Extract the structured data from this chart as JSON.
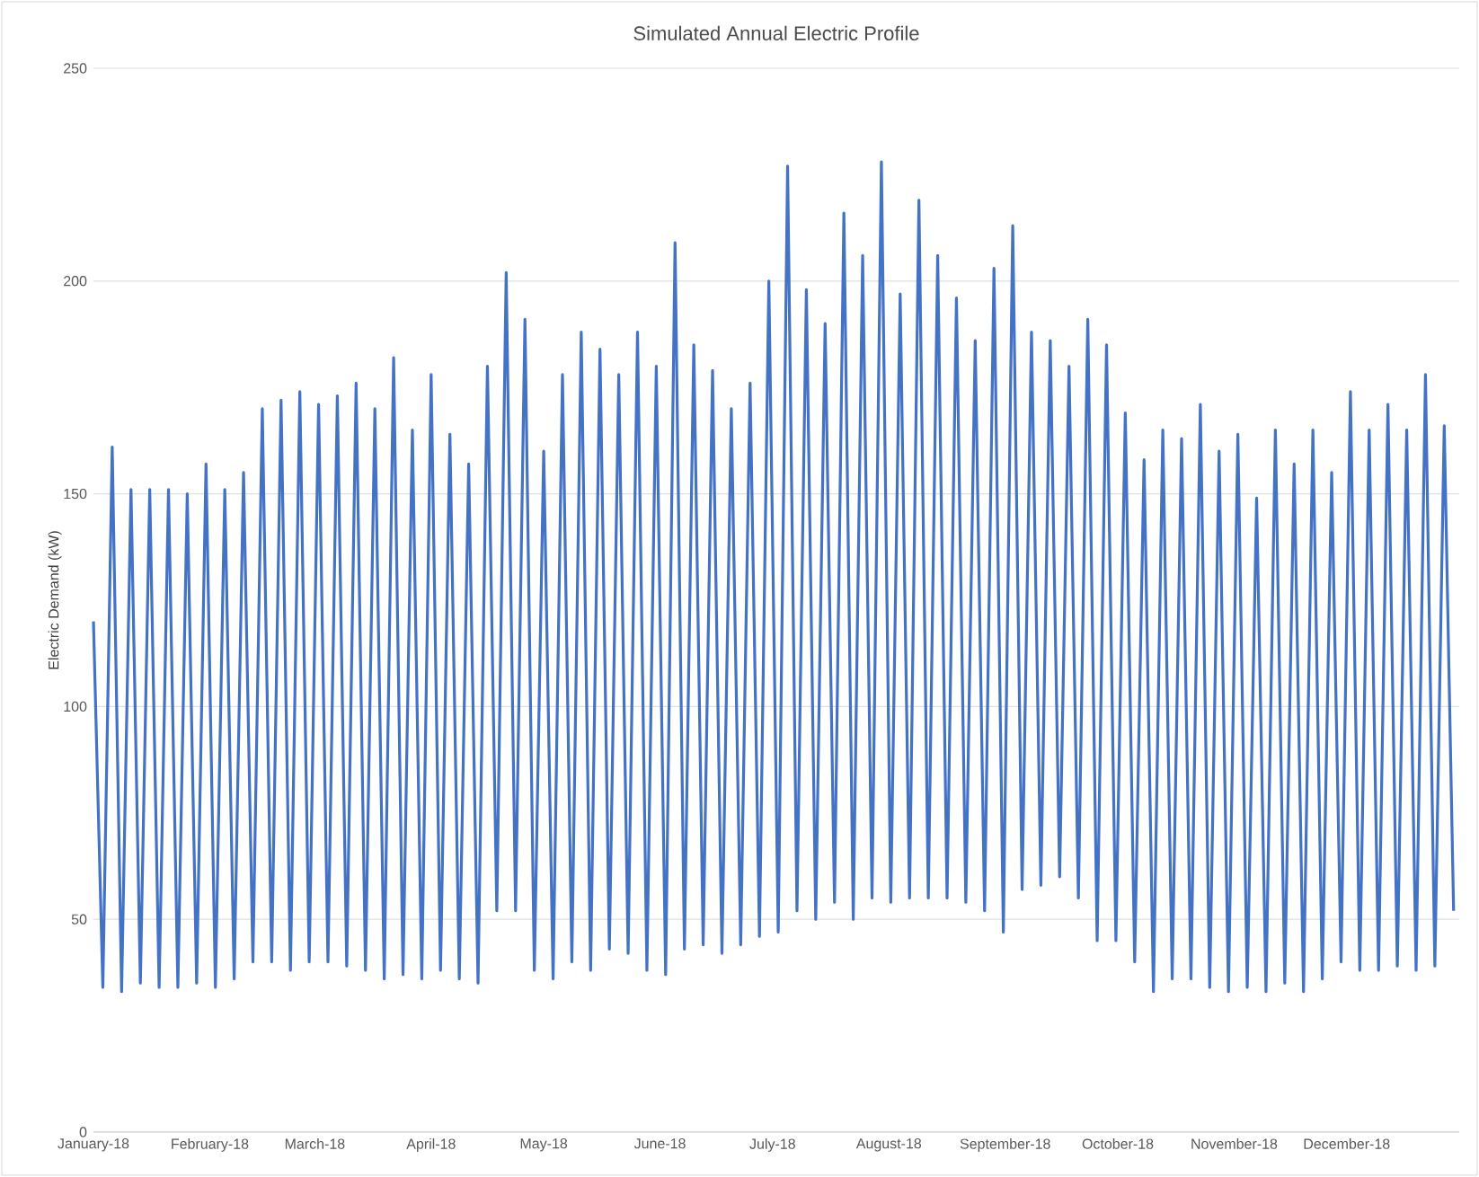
{
  "chart_data": {
    "type": "line",
    "title": "Simulated Annual Electric Profile",
    "ylabel": "Electric Demand (kW)",
    "x": [
      "2018-01-01",
      "2018-01-03T12:00",
      "2018-01-06",
      "2018-01-08T12:00",
      "2018-01-11",
      "2018-01-13T12:00",
      "2018-01-16",
      "2018-01-18T12:00",
      "2018-01-21",
      "2018-01-23T12:00",
      "2018-01-26",
      "2018-01-28T12:00",
      "2018-01-31",
      "2018-02-02T12:00",
      "2018-02-05",
      "2018-02-07T12:00",
      "2018-02-10",
      "2018-02-12T12:00",
      "2018-02-15",
      "2018-02-17T12:00",
      "2018-02-20",
      "2018-02-22T12:00",
      "2018-02-25",
      "2018-02-27T12:00",
      "2018-03-02",
      "2018-03-04T12:00",
      "2018-03-07",
      "2018-03-09T12:00",
      "2018-03-12",
      "2018-03-14T12:00",
      "2018-03-17",
      "2018-03-19T12:00",
      "2018-03-22",
      "2018-03-24T12:00",
      "2018-03-27",
      "2018-03-29T12:00",
      "2018-04-01",
      "2018-04-03T12:00",
      "2018-04-06",
      "2018-04-08T12:00",
      "2018-04-11",
      "2018-04-13T12:00",
      "2018-04-16",
      "2018-04-18T12:00",
      "2018-04-21",
      "2018-04-23T12:00",
      "2018-04-26",
      "2018-04-28T12:00",
      "2018-05-01",
      "2018-05-03T12:00",
      "2018-05-06",
      "2018-05-08T12:00",
      "2018-05-11",
      "2018-05-13T12:00",
      "2018-05-16",
      "2018-05-18T12:00",
      "2018-05-21",
      "2018-05-23T12:00",
      "2018-05-26",
      "2018-05-28T12:00",
      "2018-05-31",
      "2018-06-02T12:00",
      "2018-06-05",
      "2018-06-07T12:00",
      "2018-06-10",
      "2018-06-12T12:00",
      "2018-06-15",
      "2018-06-17T12:00",
      "2018-06-20",
      "2018-06-22T12:00",
      "2018-06-25",
      "2018-06-27T12:00",
      "2018-06-30",
      "2018-07-02T12:00",
      "2018-07-05",
      "2018-07-07T12:00",
      "2018-07-10",
      "2018-07-12T12:00",
      "2018-07-15",
      "2018-07-17T12:00",
      "2018-07-20",
      "2018-07-22T12:00",
      "2018-07-25",
      "2018-07-27T12:00",
      "2018-07-30",
      "2018-08-01T12:00",
      "2018-08-04",
      "2018-08-06T12:00",
      "2018-08-09",
      "2018-08-11T12:00",
      "2018-08-14",
      "2018-08-16T12:00",
      "2018-08-19",
      "2018-08-21T12:00",
      "2018-08-24",
      "2018-08-26T12:00",
      "2018-08-29",
      "2018-08-31T12:00",
      "2018-09-03",
      "2018-09-05T12:00",
      "2018-09-08",
      "2018-09-10T12:00",
      "2018-09-13",
      "2018-09-15T12:00",
      "2018-09-18",
      "2018-09-20T12:00",
      "2018-09-23",
      "2018-09-25T12:00",
      "2018-09-28",
      "2018-09-30T12:00",
      "2018-10-03",
      "2018-10-05T12:00",
      "2018-10-08",
      "2018-10-10T12:00",
      "2018-10-13",
      "2018-10-15T12:00",
      "2018-10-18",
      "2018-10-20T12:00",
      "2018-10-23",
      "2018-10-25T12:00",
      "2018-10-28",
      "2018-10-30T12:00",
      "2018-11-02",
      "2018-11-04T12:00",
      "2018-11-07",
      "2018-11-09T12:00",
      "2018-11-12",
      "2018-11-14T12:00",
      "2018-11-17",
      "2018-11-19T12:00",
      "2018-11-22",
      "2018-11-24T12:00",
      "2018-11-27",
      "2018-11-29T12:00",
      "2018-12-02",
      "2018-12-04T12:00",
      "2018-12-07",
      "2018-12-09T12:00",
      "2018-12-12",
      "2018-12-14T12:00",
      "2018-12-17",
      "2018-12-19T12:00",
      "2018-12-22",
      "2018-12-24T12:00",
      "2018-12-27",
      "2018-12-29T12:00"
    ],
    "series": [
      {
        "color": "#4472c4",
        "values": [
          120,
          34,
          161,
          33,
          151,
          35,
          151,
          34,
          151,
          34,
          150,
          35,
          157,
          34,
          151,
          36,
          155,
          40,
          170,
          40,
          172,
          38,
          174,
          40,
          171,
          40,
          173,
          39,
          176,
          38,
          170,
          36,
          182,
          37,
          165,
          36,
          178,
          38,
          164,
          36,
          157,
          35,
          180,
          52,
          202,
          52,
          191,
          38,
          160,
          36,
          178,
          40,
          188,
          38,
          184,
          43,
          178,
          42,
          188,
          38,
          180,
          37,
          209,
          43,
          185,
          44,
          179,
          42,
          170,
          44,
          176,
          46,
          200,
          47,
          227,
          52,
          198,
          50,
          190,
          54,
          216,
          50,
          206,
          55,
          228,
          54,
          197,
          55,
          219,
          55,
          206,
          55,
          196,
          54,
          186,
          52,
          203,
          47,
          213,
          57,
          188,
          58,
          186,
          60,
          180,
          55,
          191,
          45,
          185,
          45,
          169,
          40,
          158,
          33,
          165,
          36,
          163,
          36,
          171,
          34,
          160,
          33,
          164,
          34,
          149,
          33,
          165,
          35,
          157,
          33,
          165,
          36,
          155,
          40,
          174,
          38,
          165,
          38,
          171,
          39,
          165,
          38,
          178,
          39,
          166,
          52
        ]
      }
    ],
    "xlim": [
      "2018-01-01",
      "2018-12-31"
    ],
    "xticks": [
      {
        "value": "2018-01-01",
        "label": "January-18"
      },
      {
        "value": "2018-02-01",
        "label": "February-18"
      },
      {
        "value": "2018-03-01",
        "label": "March-18"
      },
      {
        "value": "2018-04-01",
        "label": "April-18"
      },
      {
        "value": "2018-05-01",
        "label": "May-18"
      },
      {
        "value": "2018-06-01",
        "label": "June-18"
      },
      {
        "value": "2018-07-01",
        "label": "July-18"
      },
      {
        "value": "2018-08-01",
        "label": "August-18"
      },
      {
        "value": "2018-09-01",
        "label": "September-18"
      },
      {
        "value": "2018-10-01",
        "label": "October-18"
      },
      {
        "value": "2018-11-01",
        "label": "November-18"
      },
      {
        "value": "2018-12-01",
        "label": "December-18"
      }
    ],
    "ylim": [
      0,
      250
    ],
    "yticks": [
      0,
      50,
      100,
      150,
      200,
      250
    ],
    "grid": "y"
  }
}
